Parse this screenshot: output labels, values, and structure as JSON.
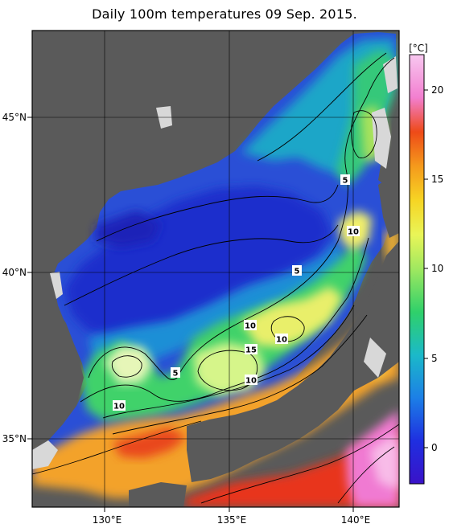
{
  "title": "Daily 100m temperatures 09 Sep. 2015.",
  "axes": {
    "lon_ticks": [
      "130°E",
      "135°E",
      "140°E"
    ],
    "lat_ticks": [
      "45°N",
      "40°N",
      "35°N"
    ]
  },
  "colorbar": {
    "unit": "[°C]",
    "ticks": [
      "20",
      "15",
      "10",
      "5",
      "0"
    ],
    "range": [
      -2,
      22
    ]
  },
  "contour_labels": [
    "5",
    "10",
    "5",
    "10",
    "10",
    "15",
    "10",
    "5",
    "10",
    "10"
  ],
  "colors": {
    "land": "#5a5a5a",
    "no_data": "#d8d8d8",
    "cold": "#1e3fd0",
    "warm": "#e83a1c"
  }
}
